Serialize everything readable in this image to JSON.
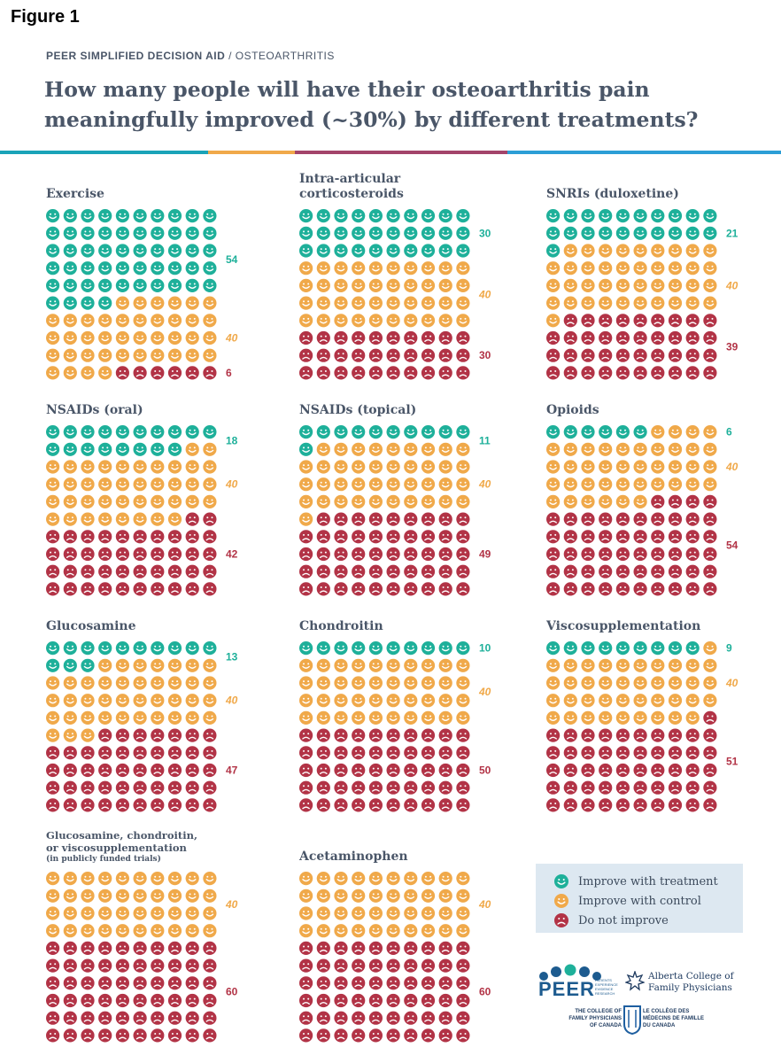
{
  "figure_label": "Figure 1",
  "kicker": {
    "bold": "PEER SIMPLIFIED DECISION AID",
    "rest": " / OSTEOARTHRITIS"
  },
  "title": "How many people will have their osteoarthritis pain meaningfully improved (~30%) by different treatments?",
  "colors": {
    "treatment": "#1eb09a",
    "control": "#f0a94a",
    "none": "#b23346",
    "divider": [
      "#1aa3b8",
      "#f0a94a",
      "#a3446a",
      "#2c9ed6"
    ]
  },
  "legend": {
    "items": [
      {
        "label": "Improve with treatment",
        "category": "treatment",
        "icon": "smile-icon"
      },
      {
        "label": "Improve with control",
        "category": "control",
        "icon": "smile-icon"
      },
      {
        "label": "Do not improve",
        "category": "none",
        "icon": "frown-icon"
      }
    ]
  },
  "logos": {
    "peer": "PEER",
    "peer_sub": "PATIENTS EXPERIENCE EVIDENCE RESEARCH",
    "acfp": "Alberta College of Family Physicians",
    "cfpc_en": "THE COLLEGE OF FAMILY PHYSICIANS OF CANADA",
    "cfpc_fr": "LE COLLÈGE DES MÉDECINS DE FAMILLE DU CANADA"
  },
  "chart_data": [
    {
      "type": "icon-array",
      "title": "Exercise",
      "total": 100,
      "treatment": 54,
      "control": 40,
      "none": 6
    },
    {
      "type": "icon-array",
      "title": "Intra-articular\ncorticosteroids",
      "total": 100,
      "treatment": 30,
      "control": 40,
      "none": 30
    },
    {
      "type": "icon-array",
      "title": "SNRIs (duloxetine)",
      "total": 100,
      "treatment": 21,
      "control": 40,
      "none": 39
    },
    {
      "type": "icon-array",
      "title": "NSAIDs (oral)",
      "total": 100,
      "treatment": 18,
      "control": 40,
      "none": 42
    },
    {
      "type": "icon-array",
      "title": "NSAIDs (topical)",
      "total": 100,
      "treatment": 11,
      "control": 40,
      "none": 49
    },
    {
      "type": "icon-array",
      "title": "Opioids",
      "total": 100,
      "treatment": 6,
      "control": 40,
      "none": 54
    },
    {
      "type": "icon-array",
      "title": "Glucosamine",
      "total": 100,
      "treatment": 13,
      "control": 40,
      "none": 47
    },
    {
      "type": "icon-array",
      "title": "Chondroitin",
      "total": 100,
      "treatment": 10,
      "control": 40,
      "none": 50
    },
    {
      "type": "icon-array",
      "title": "Viscosupplementation",
      "total": 100,
      "treatment": 9,
      "control": 40,
      "none": 51
    },
    {
      "type": "icon-array",
      "title": "Glucosamine, chondroitin,\nor viscosupplementation",
      "subtitle": "(in publicly funded trials)",
      "total": 100,
      "treatment": 0,
      "control": 40,
      "none": 60
    },
    {
      "type": "icon-array",
      "title": "Acetaminophen",
      "total": 100,
      "treatment": 0,
      "control": 40,
      "none": 60
    }
  ]
}
